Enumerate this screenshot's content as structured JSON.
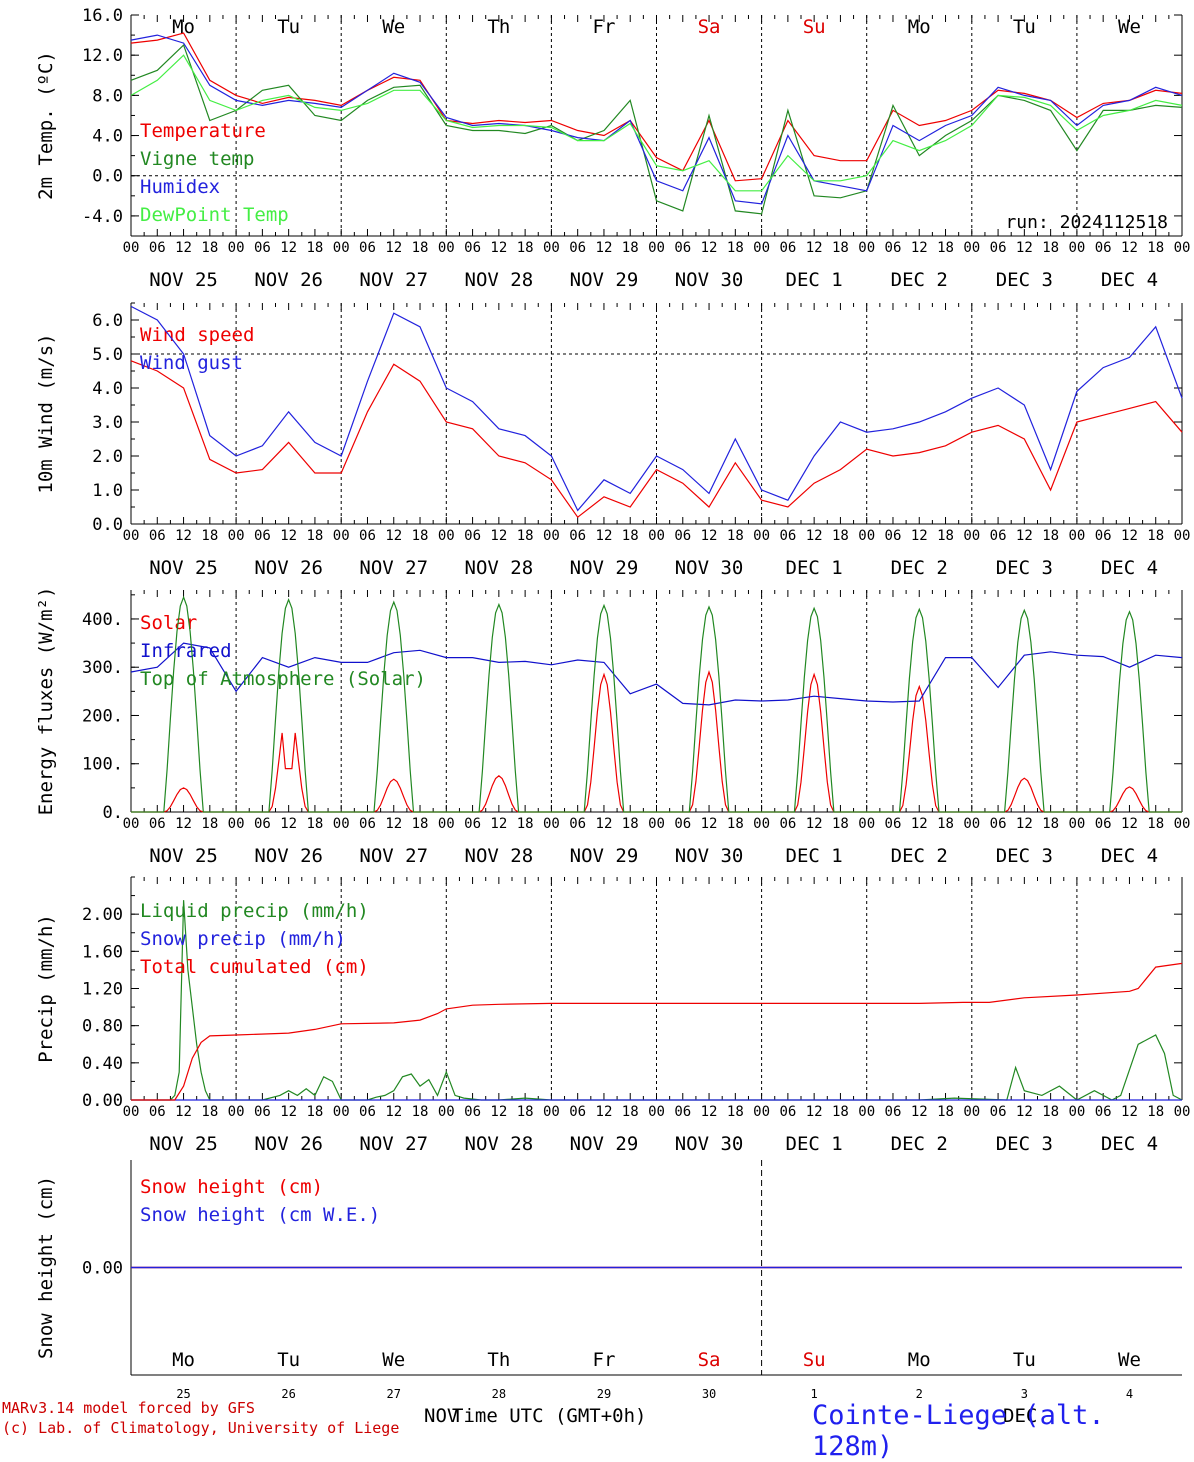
{
  "run_label": "run: 2024112518",
  "x_title": "Time UTC (GMT+0h)",
  "footer": {
    "line1": "MARv3.14 model forced by GFS",
    "line2": "(c) Lab. of Climatology, University of Liege"
  },
  "station": "Cointe-Liege (alt. 128m)",
  "bottom_month_labels": [
    "NOV",
    "DEC"
  ],
  "weekdays": [
    {
      "label": "Mo",
      "color": "#000000"
    },
    {
      "label": "Tu",
      "color": "#000000"
    },
    {
      "label": "We",
      "color": "#000000"
    },
    {
      "label": "Th",
      "color": "#000000"
    },
    {
      "label": "Fr",
      "color": "#000000"
    },
    {
      "label": "Sa",
      "color": "#dd0000"
    },
    {
      "label": "Su",
      "color": "#dd0000"
    },
    {
      "label": "Mo",
      "color": "#000000"
    },
    {
      "label": "Tu",
      "color": "#000000"
    },
    {
      "label": "We",
      "color": "#000000"
    }
  ],
  "date_labels": [
    "NOV 25",
    "NOV 26",
    "NOV 27",
    "NOV 28",
    "NOV 29",
    "NOV 30",
    "DEC  1",
    "DEC  2",
    "DEC  3",
    "DEC  4"
  ],
  "hour_ticks": [
    "00",
    "06",
    "12",
    "18"
  ],
  "hour_end": "00",
  "day_numbers": [
    "25",
    "26",
    "27",
    "28",
    "29",
    "30",
    "1",
    "2",
    "3",
    "4"
  ],
  "chart_data": [
    {
      "type": "line",
      "ylabel": "2m Temp. (ºC)",
      "ylim": [
        -6,
        16
      ],
      "yticks": [
        "16.0",
        "12.0",
        "8.0",
        "4.0",
        "0.0",
        "-4.0"
      ],
      "ytick_values": [
        16,
        12,
        8,
        4,
        0,
        -4
      ],
      "dashed_y": 0,
      "x_unit": "hours since NOV 25 00 UTC",
      "x": [
        0,
        6,
        12,
        18,
        24,
        30,
        36,
        42,
        48,
        54,
        60,
        66,
        72,
        78,
        84,
        90,
        96,
        102,
        108,
        114,
        120,
        126,
        132,
        138,
        144,
        150,
        156,
        162,
        168,
        174,
        180,
        186,
        192,
        198,
        204,
        210,
        216,
        222,
        228,
        234,
        240
      ],
      "series": [
        {
          "name": "Temperature",
          "color": "#ee0000",
          "values": [
            13.2,
            13.5,
            14.2,
            9.5,
            8.0,
            7.2,
            7.8,
            7.5,
            7.0,
            8.5,
            9.8,
            9.5,
            5.5,
            5.2,
            5.5,
            5.3,
            5.5,
            4.5,
            4.0,
            5.5,
            1.8,
            0.5,
            5.5,
            -0.5,
            -0.3,
            5.5,
            2.0,
            1.5,
            1.5,
            6.5,
            5.0,
            5.5,
            6.5,
            8.5,
            8.2,
            7.5,
            5.8,
            7.2,
            7.5,
            8.5,
            8.2
          ]
        },
        {
          "name": "Vigne temp",
          "color": "#228822",
          "values": [
            9.5,
            10.5,
            13.0,
            5.5,
            6.5,
            8.5,
            9.0,
            6.0,
            5.5,
            7.5,
            8.8,
            9.0,
            5.0,
            4.5,
            4.5,
            4.2,
            5.0,
            3.5,
            4.5,
            7.5,
            -2.5,
            -3.5,
            6.0,
            -3.5,
            -3.8,
            6.5,
            -2.0,
            -2.2,
            -1.5,
            7.0,
            2.0,
            4.0,
            5.5,
            8.0,
            7.5,
            6.5,
            2.5,
            6.5,
            6.5,
            7.0,
            6.8
          ]
        },
        {
          "name": "Humidex",
          "color": "#2222dd",
          "values": [
            13.5,
            14.0,
            13.2,
            9.0,
            7.5,
            7.0,
            7.5,
            7.2,
            6.8,
            8.5,
            10.2,
            9.3,
            5.8,
            5.0,
            5.2,
            5.0,
            4.5,
            3.8,
            3.5,
            5.5,
            -0.5,
            -1.5,
            3.8,
            -2.5,
            -2.8,
            4.0,
            -0.5,
            -1.0,
            -1.5,
            5.0,
            3.5,
            5.0,
            6.0,
            8.8,
            8.0,
            7.5,
            5.0,
            7.0,
            7.5,
            8.8,
            8.0
          ]
        },
        {
          "name": "DewPoint Temp",
          "color": "#44ee44",
          "values": [
            8.0,
            9.5,
            12.0,
            7.5,
            6.5,
            7.5,
            8.0,
            6.8,
            6.5,
            7.2,
            8.5,
            8.5,
            5.5,
            4.8,
            5.0,
            5.0,
            4.8,
            3.5,
            3.5,
            5.2,
            1.0,
            0.5,
            1.5,
            -1.5,
            -1.5,
            2.0,
            -0.5,
            -0.5,
            0.0,
            3.5,
            2.5,
            3.5,
            5.0,
            8.0,
            7.8,
            7.0,
            4.5,
            6.0,
            6.5,
            7.5,
            7.0
          ]
        }
      ]
    },
    {
      "type": "line",
      "ylabel": "10m Wind (m/s)",
      "ylim": [
        0,
        6.5
      ],
      "yticks": [
        "6.0",
        "5.0",
        "4.0",
        "3.0",
        "2.0",
        "1.0",
        "0.0"
      ],
      "ytick_values": [
        6,
        5,
        4,
        3,
        2,
        1,
        0
      ],
      "dashed_y": 5,
      "x_unit": "hours since NOV 25 00 UTC",
      "x": [
        0,
        6,
        12,
        18,
        24,
        30,
        36,
        42,
        48,
        54,
        60,
        66,
        72,
        78,
        84,
        90,
        96,
        102,
        108,
        114,
        120,
        126,
        132,
        138,
        144,
        150,
        156,
        162,
        168,
        174,
        180,
        186,
        192,
        198,
        204,
        210,
        216,
        222,
        228,
        234,
        240
      ],
      "series": [
        {
          "name": "Wind speed",
          "color": "#ee0000",
          "values": [
            4.8,
            4.5,
            4.0,
            1.9,
            1.5,
            1.6,
            2.4,
            1.5,
            1.5,
            3.3,
            4.7,
            4.2,
            3.0,
            2.8,
            2.0,
            1.8,
            1.3,
            0.2,
            0.8,
            0.5,
            1.6,
            1.2,
            0.5,
            1.8,
            0.7,
            0.5,
            1.2,
            1.6,
            2.2,
            2.0,
            2.1,
            2.3,
            2.7,
            2.9,
            2.5,
            1.0,
            3.0,
            3.2,
            3.4,
            3.6,
            2.7
          ]
        },
        {
          "name": "Wind gust",
          "color": "#2222dd",
          "values": [
            6.4,
            6.0,
            5.0,
            2.6,
            2.0,
            2.3,
            3.3,
            2.4,
            2.0,
            4.2,
            6.2,
            5.8,
            4.0,
            3.6,
            2.8,
            2.6,
            2.0,
            0.4,
            1.3,
            0.9,
            2.0,
            1.6,
            0.9,
            2.5,
            1.0,
            0.7,
            2.0,
            3.0,
            2.7,
            2.8,
            3.0,
            3.3,
            3.7,
            4.0,
            3.5,
            1.6,
            3.9,
            4.6,
            4.9,
            5.8,
            3.7
          ]
        }
      ]
    },
    {
      "type": "line",
      "ylabel": "Energy fluxes (W/m²)",
      "ylim": [
        0,
        460
      ],
      "yticks": [
        "400.",
        "300.",
        "200.",
        "100.",
        "0."
      ],
      "ytick_values": [
        400,
        300,
        200,
        100,
        0
      ],
      "x_unit": "hours since NOV 25 00 UTC",
      "series": [
        {
          "name": "Solar",
          "color": "#ee0000",
          "type": "daily",
          "peaks": [
            50,
            225,
            68,
            75,
            285,
            290,
            285,
            260,
            70,
            52
          ]
        },
        {
          "name": "Infrared",
          "color": "#1111cc",
          "x": [
            0,
            6,
            12,
            18,
            24,
            30,
            36,
            42,
            48,
            54,
            60,
            66,
            72,
            78,
            84,
            90,
            96,
            102,
            108,
            114,
            120,
            126,
            132,
            138,
            144,
            150,
            156,
            162,
            168,
            174,
            180,
            186,
            192,
            198,
            204,
            210,
            216,
            222,
            228,
            234,
            240
          ],
          "values": [
            290,
            300,
            350,
            340,
            250,
            320,
            300,
            320,
            310,
            310,
            330,
            335,
            320,
            320,
            310,
            312,
            305,
            315,
            310,
            245,
            265,
            225,
            222,
            232,
            230,
            232,
            240,
            235,
            230,
            228,
            230,
            320,
            320,
            258,
            325,
            332,
            325,
            322,
            300,
            325,
            320
          ]
        },
        {
          "name": "Top of Atmosphere (Solar)",
          "color": "#228822",
          "type": "daily",
          "peaks": [
            445,
            440,
            435,
            430,
            428,
            425,
            422,
            420,
            418,
            415
          ]
        }
      ]
    },
    {
      "type": "line",
      "ylabel": "Precip (mm/h)",
      "ylim": [
        0,
        2.4
      ],
      "yticks": [
        "2.00",
        "1.60",
        "1.20",
        "0.80",
        "0.40",
        "0.00"
      ],
      "ytick_values": [
        2.0,
        1.6,
        1.2,
        0.8,
        0.4,
        0.0
      ],
      "x_unit": "hours since NOV 25 00 UTC",
      "series": [
        {
          "name": "Liquid precip (mm/h)",
          "color": "#228822",
          "x": [
            0,
            9,
            10,
            11,
            12,
            13,
            14,
            15,
            16,
            17,
            18,
            20,
            24,
            30,
            34,
            36,
            38,
            40,
            42,
            44,
            46,
            48,
            54,
            56,
            58,
            60,
            62,
            64,
            66,
            68,
            70,
            72,
            74,
            76,
            80,
            84,
            90,
            96,
            144,
            180,
            188,
            200,
            202,
            204,
            208,
            212,
            216,
            220,
            224,
            226,
            230,
            234,
            236,
            238,
            240
          ],
          "values": [
            0,
            0,
            0.05,
            0.3,
            2.15,
            1.4,
            1.0,
            0.6,
            0.3,
            0.1,
            0,
            0,
            0,
            0,
            0.05,
            0.1,
            0.05,
            0.12,
            0.05,
            0.25,
            0.2,
            0,
            0,
            0.03,
            0.05,
            0.1,
            0.25,
            0.28,
            0.15,
            0.22,
            0.05,
            0.3,
            0.05,
            0.02,
            0,
            0,
            0.02,
            0,
            0,
            0,
            0.02,
            0,
            0.35,
            0.1,
            0.05,
            0.15,
            0,
            0.1,
            0,
            0.05,
            0.6,
            0.7,
            0.5,
            0.05,
            0
          ]
        },
        {
          "name": "Snow precip (mm/h)",
          "color": "#2222dd",
          "x": [
            0,
            240
          ],
          "values": [
            0,
            0
          ]
        },
        {
          "name": "Total cumulated (cm)",
          "color": "#ee0000",
          "x": [
            0,
            10,
            12,
            14,
            16,
            18,
            24,
            36,
            42,
            48,
            60,
            66,
            70,
            72,
            78,
            84,
            96,
            120,
            144,
            180,
            190,
            196,
            204,
            216,
            228,
            230,
            234,
            240
          ],
          "values": [
            0,
            0,
            0.15,
            0.45,
            0.62,
            0.69,
            0.7,
            0.72,
            0.76,
            0.82,
            0.83,
            0.86,
            0.93,
            0.98,
            1.02,
            1.03,
            1.04,
            1.04,
            1.04,
            1.04,
            1.05,
            1.05,
            1.1,
            1.13,
            1.17,
            1.2,
            1.43,
            1.47
          ]
        }
      ]
    },
    {
      "type": "line",
      "ylabel": "Snow height (cm)",
      "ylim": [
        -1,
        1
      ],
      "yticks": [
        "0.00"
      ],
      "ytick_values": [
        0
      ],
      "x_unit": "hours since NOV 25 00 UTC",
      "series": [
        {
          "name": "Snow height (cm)",
          "color": "#ee0000",
          "x": [
            0,
            240
          ],
          "values": [
            0,
            0
          ]
        },
        {
          "name": "Snow height (cm W.E.)",
          "color": "#2222dd",
          "x": [
            0,
            240
          ],
          "values": [
            0,
            0
          ]
        }
      ]
    }
  ]
}
